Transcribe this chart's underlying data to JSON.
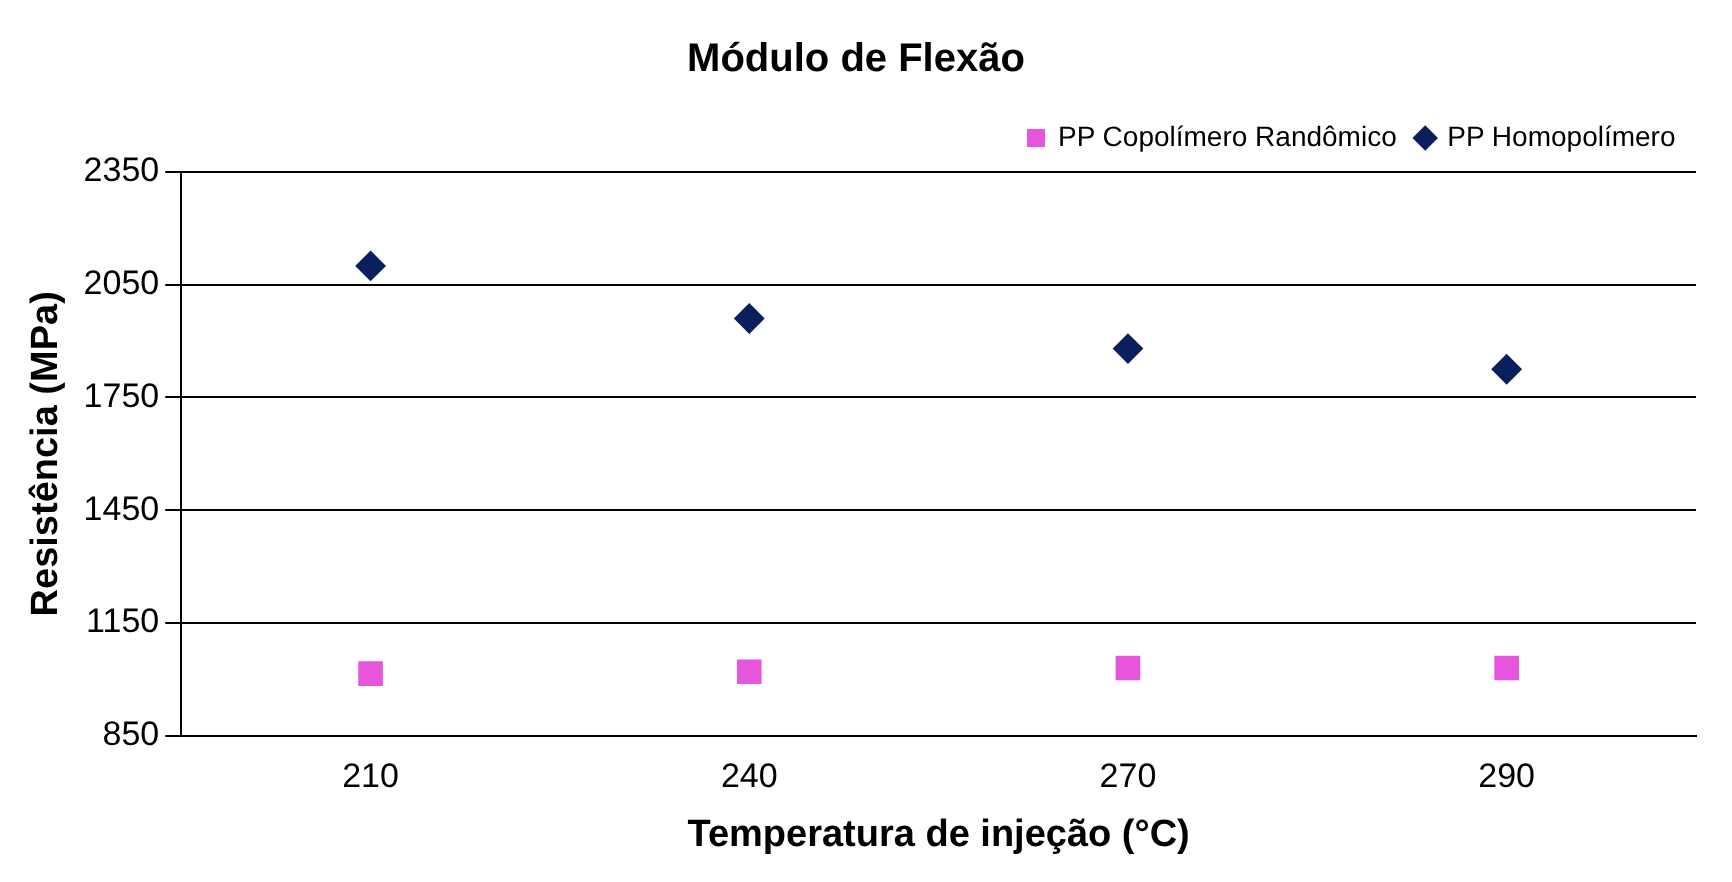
{
  "chart_data": {
    "type": "scatter",
    "title": "Módulo de Flexão",
    "xlabel": "Temperatura de injeção (°C)",
    "ylabel": "Resistência (MPa)",
    "categories": [
      "210",
      "240",
      "270",
      "290"
    ],
    "series": [
      {
        "name": "PP Copolímero Randômico",
        "color": "#e755dd",
        "marker": "square",
        "values": [
          1015,
          1020,
          1030,
          1030
        ]
      },
      {
        "name": "PP Homopolímero",
        "color": "#0a1f5c",
        "marker": "diamond",
        "values": [
          2100,
          1960,
          1880,
          1825
        ]
      }
    ],
    "ylim": [
      850,
      2350
    ],
    "yticks": [
      850,
      1150,
      1450,
      1750,
      2050,
      2350
    ],
    "grid": "y",
    "legend": "top right"
  }
}
